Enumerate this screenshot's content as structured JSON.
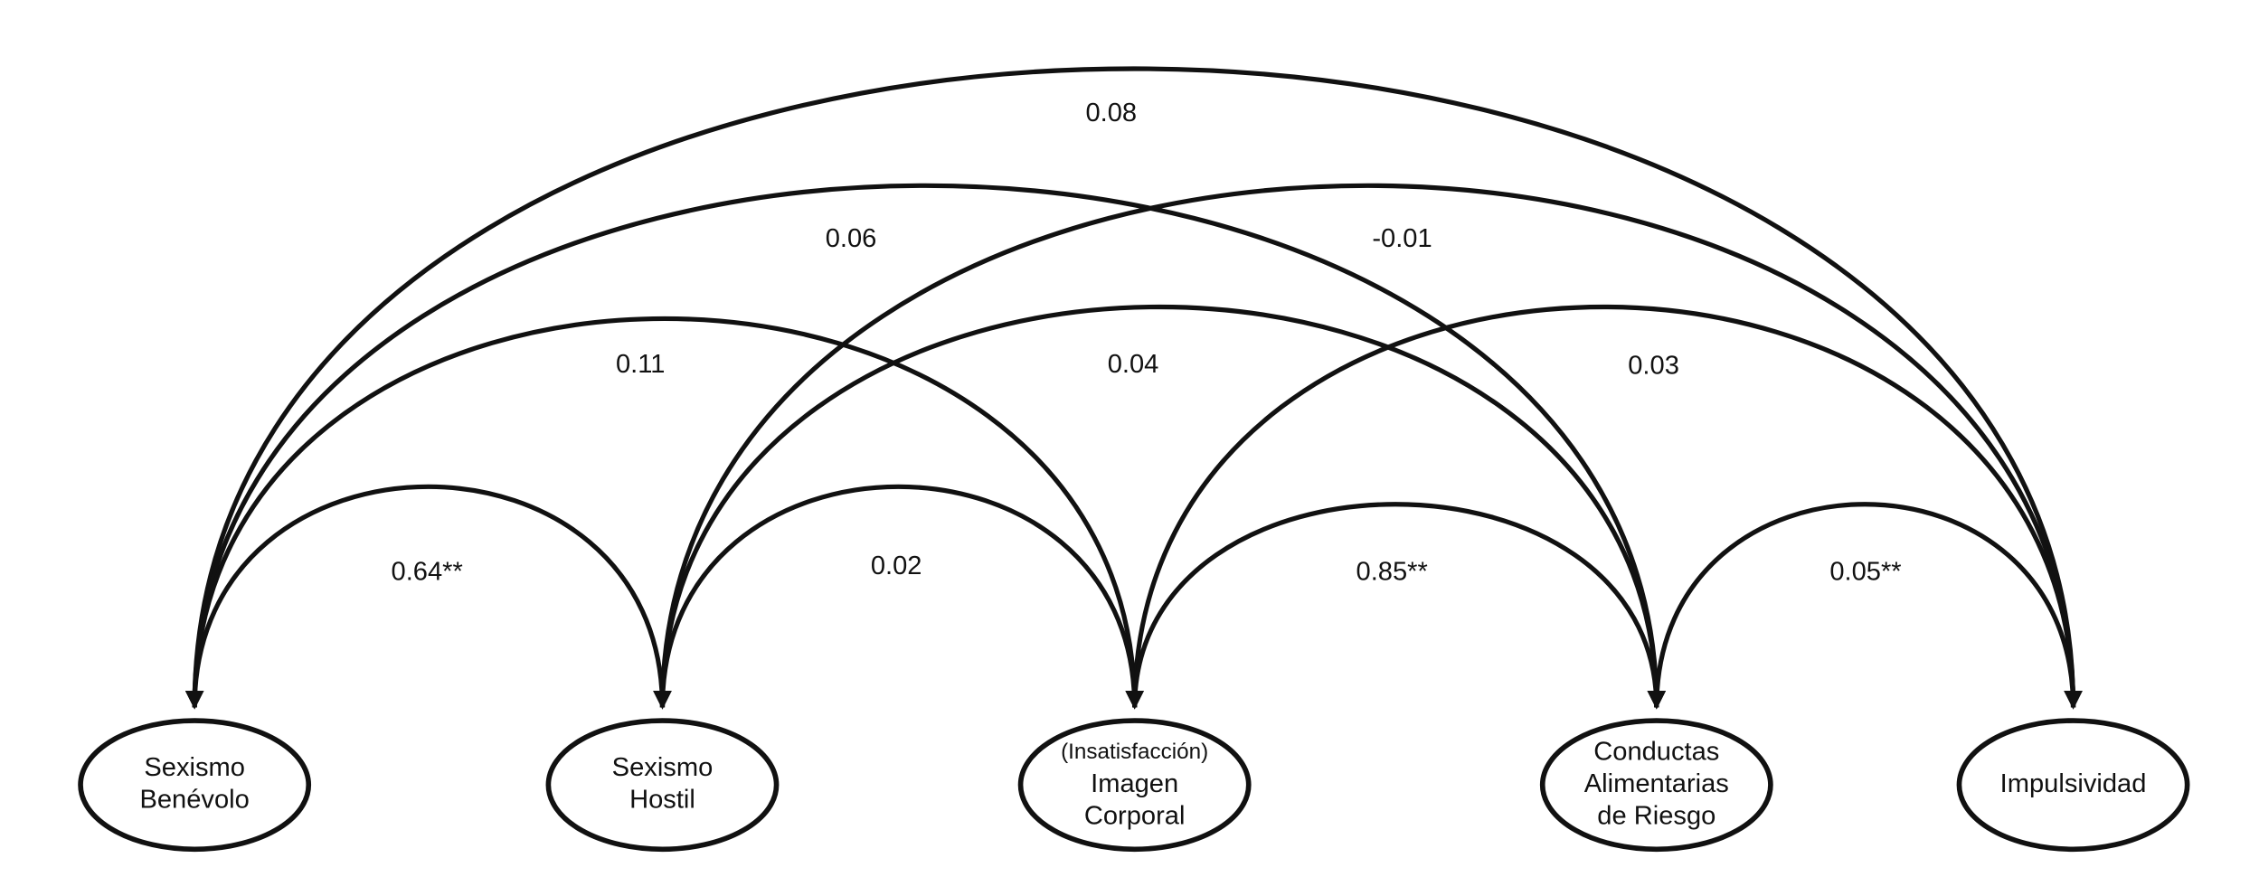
{
  "nodes": [
    {
      "lines": [
        "Sexismo",
        "Benévolo"
      ]
    },
    {
      "lines": [
        "Sexismo",
        "Hostil"
      ]
    },
    {
      "lines": [
        "(Insatisfacción)",
        "Imagen",
        "Corporal"
      ]
    },
    {
      "lines": [
        "Conductas",
        "Alimentarias",
        "de Riesgo"
      ]
    },
    {
      "lines": [
        "Impulsividad"
      ]
    }
  ],
  "edges": [
    {
      "label": "0.08"
    },
    {
      "label": "0.06"
    },
    {
      "label": "-0.01"
    },
    {
      "label": "0.11"
    },
    {
      "label": "0.04"
    },
    {
      "label": "0.03"
    },
    {
      "label": "0.64**"
    },
    {
      "label": "0.02"
    },
    {
      "label": "0.85**"
    },
    {
      "label": "0.05**"
    }
  ]
}
